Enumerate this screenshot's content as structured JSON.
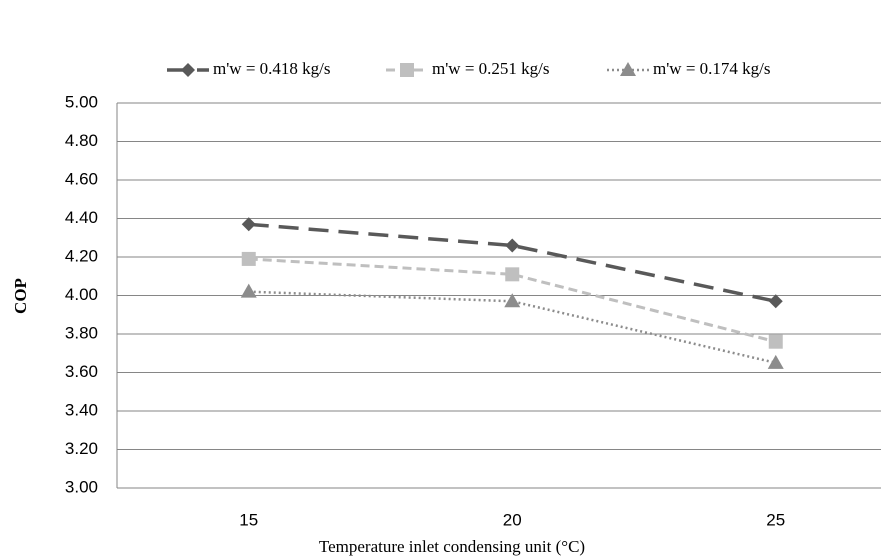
{
  "chart_data": {
    "type": "line",
    "x_label": "Temperature inlet condensing unit (°C)",
    "y_label": "COP",
    "categories": [
      "15",
      "20",
      "25"
    ],
    "series": [
      {
        "name": "m'w = 0.418 kg/s",
        "color": "#595959",
        "values": [
          4.37,
          4.26,
          3.97
        ]
      },
      {
        "name": "m'w = 0.251 kg/s",
        "color": "#bfbfbf",
        "values": [
          4.19,
          4.11,
          3.76
        ]
      },
      {
        "name": "m'w = 0.174 kg/s",
        "color": "#8c8c8c",
        "values": [
          4.02,
          3.97,
          3.65
        ]
      }
    ],
    "ylim": [
      3,
      5
    ],
    "yticks": [
      {
        "value": 3,
        "label": "3.00"
      },
      {
        "value": 3.2,
        "label": "3.20"
      },
      {
        "value": 3.4,
        "label": "3.40"
      },
      {
        "value": 3.6,
        "label": "3.60"
      },
      {
        "value": 3.8,
        "label": "3.80"
      },
      {
        "value": 4,
        "label": "4.00"
      },
      {
        "value": 4.2,
        "label": "4.20"
      },
      {
        "value": 4.4,
        "label": "4.40"
      },
      {
        "value": 4.6,
        "label": "4.60"
      },
      {
        "value": 4.8,
        "label": "4.80"
      },
      {
        "value": 5,
        "label": "5.00"
      }
    ],
    "grid": true,
    "legend": "top"
  }
}
